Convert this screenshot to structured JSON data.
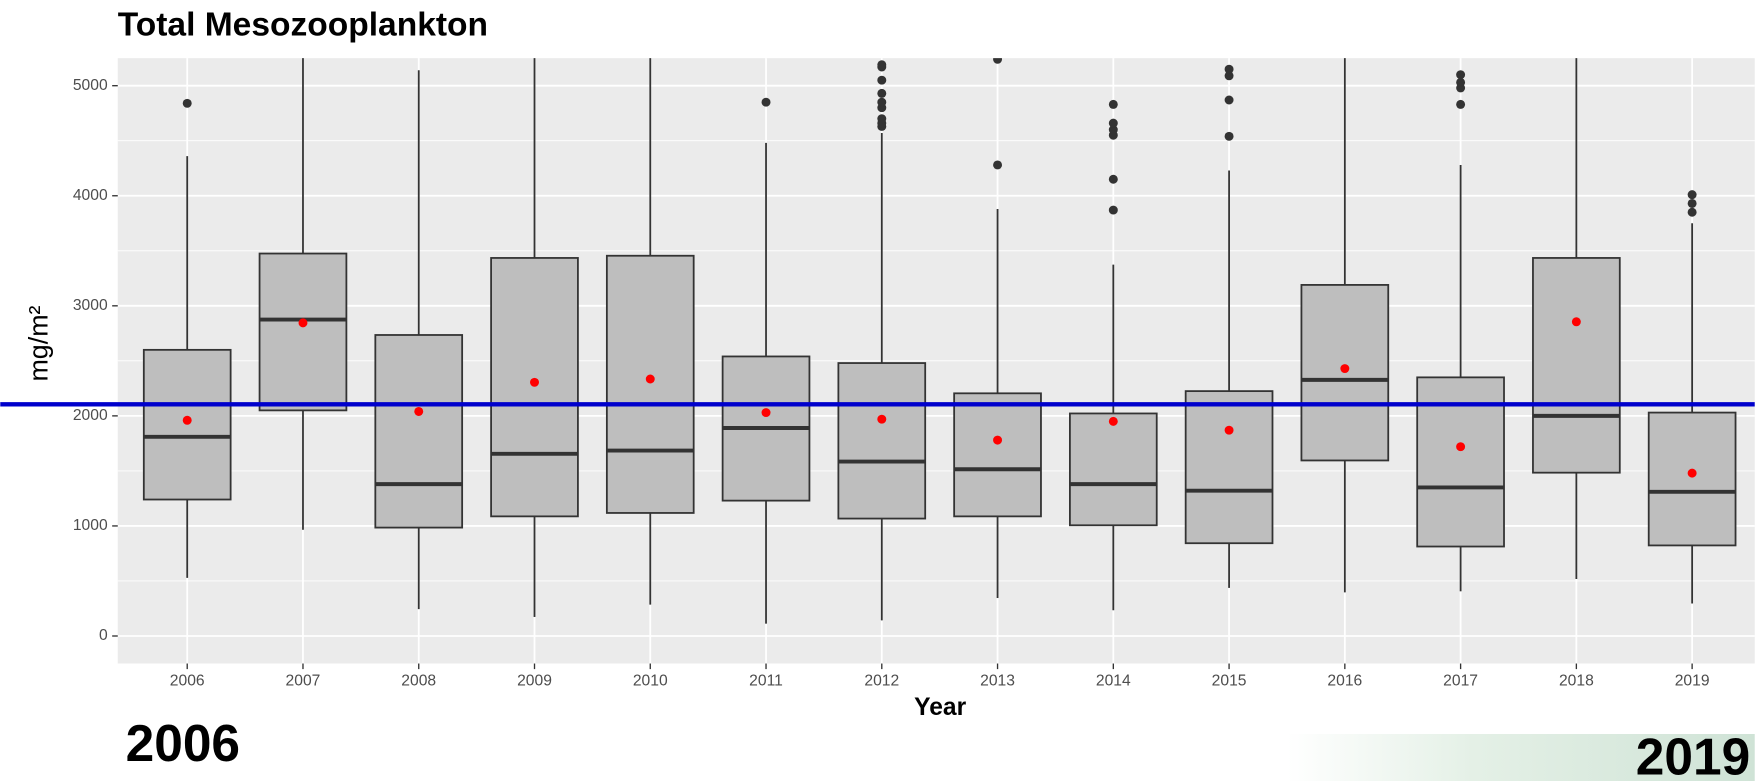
{
  "chart_data": {
    "type": "boxplot",
    "title": "Total Mesozooplankton",
    "x_label": "Year",
    "y_label": "mg/m²",
    "categories": [
      "2006",
      "2007",
      "2008",
      "2009",
      "2010",
      "2011",
      "2012",
      "2013",
      "2014",
      "2015",
      "2016",
      "2017",
      "2018",
      "2019"
    ],
    "whisker_low": [
      528,
      965,
      244,
      173,
      285,
      112,
      142,
      345,
      234,
      437,
      396,
      406,
      518,
      295
    ],
    "q1": [
      1240,
      2050,
      985,
      1087,
      1118,
      1230,
      1067,
      1087,
      1006,
      843,
      1595,
      813,
      1484,
      823
    ],
    "median": [
      1810,
      2875,
      1380,
      1655,
      1685,
      1890,
      1585,
      1515,
      1380,
      1320,
      2327,
      1350,
      2000,
      1310
    ],
    "q3": [
      2600,
      3475,
      2735,
      3435,
      3455,
      2540,
      2480,
      2205,
      2022,
      2225,
      3190,
      2350,
      3435,
      2030
    ],
    "whisker_high": [
      4360,
      5600,
      5140,
      5600,
      5600,
      4480,
      4570,
      3880,
      3374,
      4230,
      5600,
      4280,
      5600,
      3750
    ],
    "means": [
      1960,
      2845,
      2040,
      2305,
      2335,
      2030,
      1970,
      1780,
      1950,
      1870,
      2430,
      1720,
      2855,
      1480
    ],
    "outliers": [
      [
        4840
      ],
      [],
      [],
      [],
      [],
      [
        4850
      ],
      [
        4630,
        4660,
        4700,
        4800,
        4850,
        4930,
        5050,
        5170,
        5190
      ],
      [
        4280,
        5240
      ],
      [
        3870,
        4150,
        4550,
        4600,
        4660,
        4830
      ],
      [
        4540,
        4870,
        5090,
        5150
      ],
      [],
      [
        4830,
        4980,
        5030,
        5100
      ],
      [],
      [
        3850,
        3930,
        4010
      ]
    ],
    "box_color": "#bebebe",
    "mean_color": "#ff0000",
    "reference_line": 2105,
    "reference_color": "#0000cc",
    "ylim": [
      -250,
      5250
    ],
    "yticks": [
      0,
      1000,
      2000,
      3000,
      4000,
      5000
    ],
    "minor_yticks": [
      500,
      1500,
      2500,
      3500,
      4500
    ],
    "grid": true,
    "annotations": [
      "2006",
      "2019"
    ]
  }
}
